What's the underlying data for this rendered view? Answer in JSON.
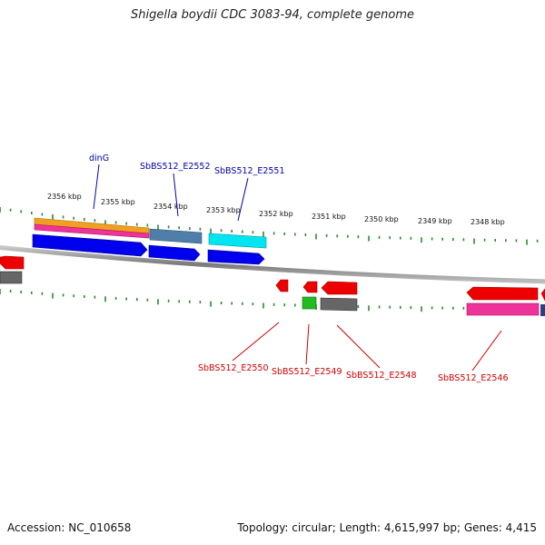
{
  "title": "Shigella boydii CDC 3083-94, complete genome",
  "footer": {
    "accession_label": "Accession:",
    "accession": "NC_010658",
    "topology_label": "Topology:",
    "topology": "circular",
    "length_label": "Length:",
    "length": "4,615,997 bp",
    "genes_label": "Genes:",
    "genes": "4,415"
  },
  "colors": {
    "label_blue": "#0000aa",
    "label_red": "#cc0000",
    "tick_green": "#2a8a2a",
    "backbone": "#888888",
    "orange": "#f0a020",
    "pink": "#ee3399",
    "blue": "#0000ee",
    "steel": "#4f7fa8",
    "cyan": "#00e5f0",
    "red": "#ee0000",
    "gray": "#666666",
    "green": "#22bb22"
  },
  "scale_labels": [
    "2356 kbp",
    "2355 kbp",
    "2354 kbp",
    "2353 kbp",
    "2352 kbp",
    "2351 kbp",
    "2350 kbp",
    "2349 kbp",
    "2348 kbp"
  ],
  "gene_labels": {
    "top": [
      "dinG",
      "SbBS512_E2552",
      "SbBS512_E2551"
    ],
    "bottom": [
      "SbBS512_E2550",
      "SbBS512_E2549",
      "SbBS512_E2548",
      "SbBS512_E2546"
    ]
  }
}
